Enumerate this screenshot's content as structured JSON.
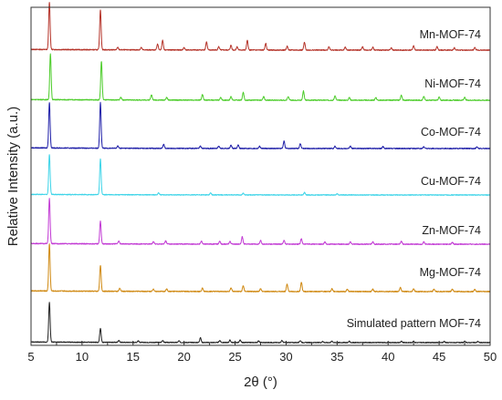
{
  "chart_data": {
    "type": "line",
    "title": "",
    "xlabel": "2θ (°)",
    "ylabel": "Relative Intensity (a.u.)",
    "xlim": [
      5,
      50
    ],
    "xticks": [
      5,
      10,
      15,
      20,
      25,
      30,
      35,
      40,
      45,
      50
    ],
    "ytick_labels": "none",
    "grid": false,
    "legend": "inline labels at right of each trace",
    "series": [
      {
        "name": "Mn-MOF-74",
        "color": "#b5342a",
        "baseline": 0,
        "amp": 1.0,
        "peaks": [
          [
            6.8,
            1.0
          ],
          [
            11.8,
            0.85
          ],
          [
            13.5,
            0.05
          ],
          [
            15.8,
            0.05
          ],
          [
            17.4,
            0.12
          ],
          [
            17.9,
            0.2
          ],
          [
            20.0,
            0.05
          ],
          [
            22.2,
            0.17
          ],
          [
            23.4,
            0.07
          ],
          [
            24.6,
            0.1
          ],
          [
            25.2,
            0.07
          ],
          [
            26.2,
            0.2
          ],
          [
            28.0,
            0.14
          ],
          [
            30.1,
            0.08
          ],
          [
            31.8,
            0.16
          ],
          [
            34.2,
            0.07
          ],
          [
            35.8,
            0.06
          ],
          [
            37.5,
            0.07
          ],
          [
            38.5,
            0.06
          ],
          [
            40.3,
            0.05
          ],
          [
            42.5,
            0.09
          ],
          [
            44.8,
            0.07
          ],
          [
            46.5,
            0.05
          ],
          [
            48.5,
            0.05
          ]
        ]
      },
      {
        "name": "Ni-MOF-74",
        "color": "#4ccc2a",
        "baseline": 1,
        "amp": 1.0,
        "peaks": [
          [
            6.9,
            1.0
          ],
          [
            11.9,
            0.85
          ],
          [
            13.8,
            0.06
          ],
          [
            16.8,
            0.12
          ],
          [
            18.3,
            0.06
          ],
          [
            21.8,
            0.12
          ],
          [
            23.6,
            0.06
          ],
          [
            24.6,
            0.08
          ],
          [
            25.8,
            0.17
          ],
          [
            27.8,
            0.08
          ],
          [
            30.2,
            0.08
          ],
          [
            31.7,
            0.2
          ],
          [
            34.8,
            0.1
          ],
          [
            36.2,
            0.06
          ],
          [
            38.8,
            0.06
          ],
          [
            41.3,
            0.11
          ],
          [
            43.5,
            0.08
          ],
          [
            45.0,
            0.07
          ],
          [
            47.5,
            0.06
          ]
        ]
      },
      {
        "name": "Co-MOF-74",
        "color": "#1f1fa8",
        "baseline": 2,
        "amp": 1.0,
        "peaks": [
          [
            6.8,
            1.0
          ],
          [
            11.8,
            1.0
          ],
          [
            13.5,
            0.05
          ],
          [
            18.0,
            0.09
          ],
          [
            21.6,
            0.05
          ],
          [
            23.4,
            0.05
          ],
          [
            24.6,
            0.07
          ],
          [
            25.3,
            0.08
          ],
          [
            27.4,
            0.05
          ],
          [
            29.8,
            0.16
          ],
          [
            31.4,
            0.1
          ],
          [
            34.8,
            0.05
          ],
          [
            36.3,
            0.05
          ],
          [
            39.5,
            0.04
          ],
          [
            43.5,
            0.04
          ],
          [
            48.7,
            0.04
          ]
        ]
      },
      {
        "name": "Cu-MOF-74",
        "color": "#3ed4e8",
        "baseline": 3,
        "amp": 1.0,
        "peaks": [
          [
            6.8,
            1.0
          ],
          [
            11.8,
            0.9
          ],
          [
            17.5,
            0.05
          ],
          [
            22.6,
            0.05
          ],
          [
            25.8,
            0.04
          ],
          [
            31.8,
            0.06
          ],
          [
            35.0,
            0.03
          ]
        ]
      },
      {
        "name": "Zn-MOF-74",
        "color": "#c23ad4",
        "baseline": 4,
        "amp": 1.0,
        "peaks": [
          [
            6.8,
            1.0
          ],
          [
            11.8,
            0.5
          ],
          [
            13.6,
            0.06
          ],
          [
            17.0,
            0.05
          ],
          [
            18.2,
            0.07
          ],
          [
            21.7,
            0.07
          ],
          [
            23.5,
            0.06
          ],
          [
            24.5,
            0.06
          ],
          [
            25.7,
            0.16
          ],
          [
            27.5,
            0.08
          ],
          [
            29.8,
            0.08
          ],
          [
            31.5,
            0.12
          ],
          [
            33.8,
            0.05
          ],
          [
            36.3,
            0.05
          ],
          [
            38.5,
            0.05
          ],
          [
            41.3,
            0.06
          ],
          [
            43.5,
            0.05
          ],
          [
            46.3,
            0.04
          ]
        ]
      },
      {
        "name": "Mg-MOF-74",
        "color": "#d08a14",
        "baseline": 5,
        "amp": 1.0,
        "peaks": [
          [
            6.8,
            1.0
          ],
          [
            11.8,
            0.55
          ],
          [
            13.7,
            0.06
          ],
          [
            17.0,
            0.05
          ],
          [
            18.3,
            0.05
          ],
          [
            21.8,
            0.07
          ],
          [
            24.6,
            0.08
          ],
          [
            25.8,
            0.12
          ],
          [
            27.5,
            0.06
          ],
          [
            30.1,
            0.16
          ],
          [
            31.5,
            0.2
          ],
          [
            34.5,
            0.06
          ],
          [
            36.0,
            0.05
          ],
          [
            38.5,
            0.05
          ],
          [
            41.2,
            0.09
          ],
          [
            42.5,
            0.06
          ],
          [
            44.5,
            0.05
          ],
          [
            46.3,
            0.05
          ],
          [
            48.5,
            0.05
          ]
        ]
      },
      {
        "name": "Simulated pattern MOF-74",
        "color": "#222222",
        "baseline": 6,
        "amp": 1.0,
        "peaks": [
          [
            6.8,
            1.0
          ],
          [
            11.8,
            0.35
          ],
          [
            13.6,
            0.05
          ],
          [
            15.5,
            0.04
          ],
          [
            17.9,
            0.05
          ],
          [
            19.5,
            0.04
          ],
          [
            21.6,
            0.12
          ],
          [
            23.5,
            0.05
          ],
          [
            24.5,
            0.06
          ],
          [
            25.5,
            0.06
          ],
          [
            27.3,
            0.04
          ],
          [
            29.6,
            0.05
          ],
          [
            31.4,
            0.05
          ],
          [
            33.6,
            0.03
          ],
          [
            34.5,
            0.04
          ],
          [
            36.2,
            0.03
          ],
          [
            41.3,
            0.03
          ],
          [
            42.5,
            0.03
          ],
          [
            45.5,
            0.03
          ],
          [
            47.5,
            0.03
          ],
          [
            48.8,
            0.03
          ]
        ]
      }
    ]
  }
}
